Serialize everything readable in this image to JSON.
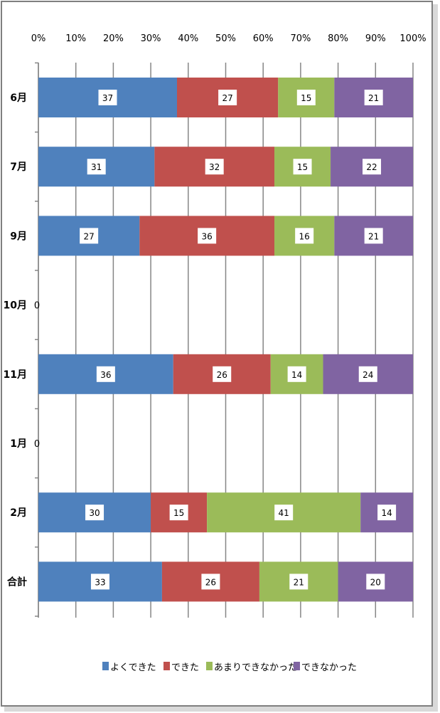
{
  "chart_data": {
    "type": "bar",
    "orientation": "horizontal",
    "stacked": true,
    "normalized": true,
    "x_tick_labels": [
      "0%",
      "10%",
      "20%",
      "30%",
      "40%",
      "50%",
      "60%",
      "70%",
      "80%",
      "90%",
      "100%"
    ],
    "xlim": [
      0,
      100
    ],
    "grid": true,
    "legend_position": "bottom",
    "categories": [
      "6月",
      "7月",
      "9月",
      "10月",
      "11月",
      "1月",
      "2月",
      "合計"
    ],
    "series": [
      {
        "name": "よくできた",
        "color": "#4f81bd",
        "values": [
          37,
          31,
          27,
          0,
          36,
          0,
          30,
          33
        ]
      },
      {
        "name": "できた",
        "color": "#c0504d",
        "values": [
          27,
          32,
          36,
          0,
          26,
          0,
          15,
          26
        ]
      },
      {
        "name": "あまりできなかった",
        "color": "#9bbb59",
        "values": [
          15,
          15,
          16,
          0,
          14,
          0,
          41,
          21
        ]
      },
      {
        "name": "できなかった",
        "color": "#8064a2",
        "values": [
          21,
          22,
          21,
          0,
          24,
          0,
          14,
          20
        ]
      }
    ],
    "empty_label": "0"
  }
}
